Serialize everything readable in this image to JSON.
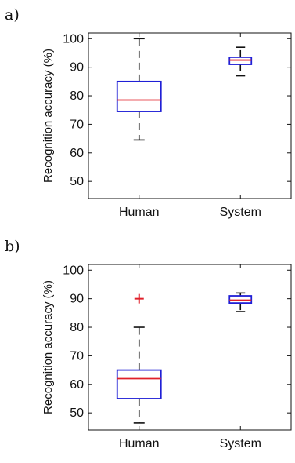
{
  "chart_data": [
    {
      "type": "box",
      "panel_label": "a)",
      "ylabel": "Recognition accuracy (%)",
      "xlabel": "",
      "categories": [
        "Human",
        "System"
      ],
      "ylim": [
        44,
        102
      ],
      "yticks": [
        50,
        60,
        70,
        80,
        90,
        100
      ],
      "boxes": [
        {
          "category": "Human",
          "whisker_low": 64.5,
          "q1": 74.5,
          "median": 78.5,
          "q3": 85,
          "whisker_high": 100,
          "outliers": []
        },
        {
          "category": "System",
          "whisker_low": 87,
          "q1": 91,
          "median": 92.5,
          "q3": 93.5,
          "whisker_high": 97,
          "outliers": []
        }
      ],
      "colors": {
        "box": "#1f1fd6",
        "median": "#e0202a",
        "whisker": "#111111",
        "outlier": "#e0202a"
      },
      "grid": false,
      "legend": "none"
    },
    {
      "type": "box",
      "panel_label": "b)",
      "ylabel": "Recognition accuracy (%)",
      "xlabel": "",
      "categories": [
        "Human",
        "System"
      ],
      "ylim": [
        44,
        102
      ],
      "yticks": [
        50,
        60,
        70,
        80,
        90,
        100
      ],
      "boxes": [
        {
          "category": "Human",
          "whisker_low": 46.5,
          "q1": 55,
          "median": 62,
          "q3": 65,
          "whisker_high": 80,
          "outliers": [
            90
          ]
        },
        {
          "category": "System",
          "whisker_low": 85.5,
          "q1": 88.5,
          "median": 89.5,
          "q3": 91,
          "whisker_high": 92,
          "outliers": []
        }
      ],
      "colors": {
        "box": "#1f1fd6",
        "median": "#e0202a",
        "whisker": "#111111",
        "outlier": "#e0202a"
      },
      "grid": false,
      "legend": "none"
    }
  ]
}
